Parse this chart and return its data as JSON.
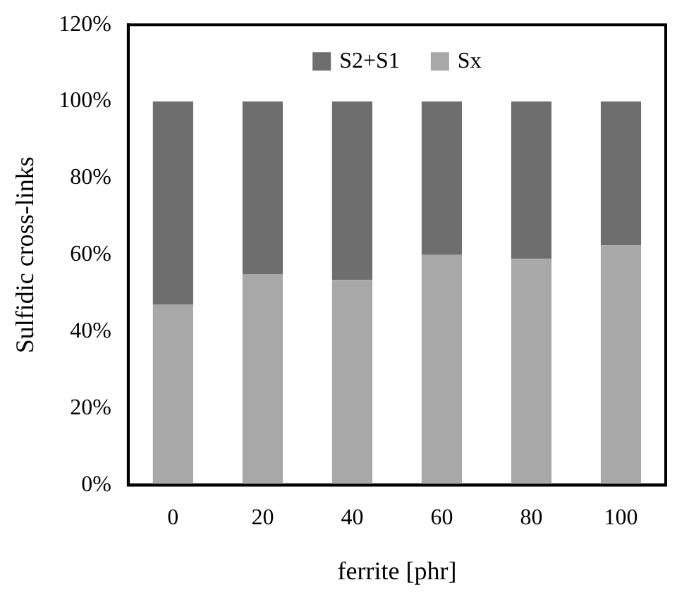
{
  "chart_data": {
    "type": "bar",
    "xlabel": "ferrite [phr]",
    "ylabel": "Sulfidic cross-links",
    "categories": [
      "0",
      "20",
      "40",
      "60",
      "80",
      "100"
    ],
    "stacked": true,
    "series": [
      {
        "name": "Sx",
        "color": "#a8a8a8",
        "values": [
          47,
          55,
          53.5,
          60,
          59,
          62.5
        ]
      },
      {
        "name": "S2+S1",
        "color": "#6e6e6e",
        "values": [
          53,
          45,
          46.5,
          40,
          41,
          37.5
        ]
      }
    ],
    "ylim": [
      0,
      120
    ],
    "yticks": [
      {
        "value": 0,
        "label": "0%"
      },
      {
        "value": 20,
        "label": "20%"
      },
      {
        "value": 40,
        "label": "40%"
      },
      {
        "value": 60,
        "label": "60%"
      },
      {
        "value": 80,
        "label": "80%"
      },
      {
        "value": 100,
        "label": "100%"
      },
      {
        "value": 120,
        "label": "120%"
      }
    ],
    "grid": false,
    "legend": "top"
  }
}
